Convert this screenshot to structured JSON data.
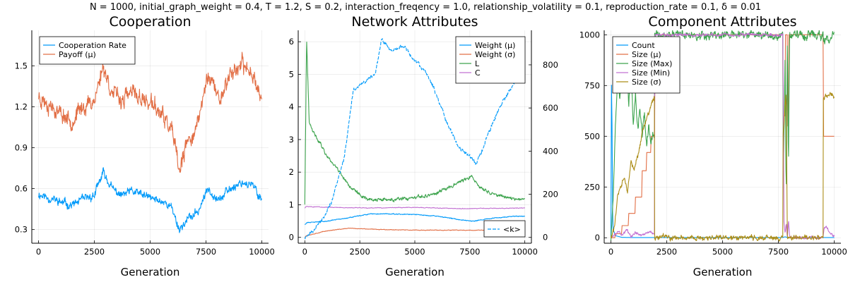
{
  "figure_title": "N = 1000, initial_graph_weight = 0.4, T = 1.2, S = 0.2, interaction_freqency = 1.0, relationship_volatility = 0.1, reproduction_rate = 0.1, δ = 0.01",
  "colors": {
    "c1": "#009AFA",
    "c2": "#E26F46",
    "c3": "#3EA44E",
    "c4": "#C271D2",
    "c5": "#AC8D18"
  },
  "chart_data": [
    {
      "type": "line",
      "title": "Cooperation",
      "xlabel": "Generation",
      "xlim": [
        -300,
        10300
      ],
      "ylim": [
        0.2,
        1.76
      ],
      "xticks": [
        0,
        2500,
        5000,
        7500,
        10000
      ],
      "xtick_labels": [
        "0",
        "2500",
        "5000",
        "7500",
        "10000"
      ],
      "yticks": [
        0.3,
        0.6,
        0.9,
        1.2,
        1.5
      ],
      "ytick_labels": [
        "0.3",
        "0.6",
        "0.9",
        "1.2",
        "1.5"
      ],
      "grid": true,
      "legend_position": "top-left",
      "series": [
        {
          "name": "Cooperation Rate",
          "color": "#009AFA",
          "x": [
            0,
            500,
            1000,
            1500,
            2000,
            2500,
            2900,
            3300,
            3700,
            4200,
            4700,
            5200,
            5700,
            6000,
            6300,
            6700,
            7100,
            7600,
            8100,
            8600,
            9100,
            9600,
            10000
          ],
          "values": [
            0.56,
            0.53,
            0.5,
            0.48,
            0.52,
            0.55,
            0.72,
            0.6,
            0.55,
            0.58,
            0.55,
            0.52,
            0.5,
            0.45,
            0.3,
            0.38,
            0.42,
            0.6,
            0.52,
            0.6,
            0.65,
            0.62,
            0.52
          ],
          "noise": 0.035,
          "seed": 11
        },
        {
          "name": "Payoff (μ)",
          "color": "#E26F46",
          "x": [
            0,
            500,
            1000,
            1500,
            2000,
            2500,
            2900,
            3300,
            3700,
            4200,
            4700,
            5200,
            5700,
            6000,
            6300,
            6700,
            7100,
            7600,
            8100,
            8600,
            9100,
            9600,
            10000
          ],
          "values": [
            1.28,
            1.22,
            1.15,
            1.1,
            1.2,
            1.25,
            1.5,
            1.3,
            1.25,
            1.3,
            1.25,
            1.2,
            1.1,
            1.0,
            0.72,
            0.95,
            1.05,
            1.45,
            1.25,
            1.45,
            1.5,
            1.45,
            1.25
          ],
          "noise": 0.07,
          "seed": 23
        }
      ]
    },
    {
      "type": "line",
      "title": "Network Attributes",
      "xlabel": "Generation",
      "xlim": [
        -300,
        10300
      ],
      "ylim": [
        -0.18,
        6.35
      ],
      "y2lim": [
        -27,
        960
      ],
      "xticks": [
        0,
        2500,
        5000,
        7500,
        10000
      ],
      "xtick_labels": [
        "0",
        "2500",
        "5000",
        "7500",
        "10000"
      ],
      "yticks": [
        0,
        1,
        2,
        3,
        4,
        5,
        6
      ],
      "ytick_labels": [
        "0",
        "1",
        "2",
        "3",
        "4",
        "5",
        "6"
      ],
      "y2ticks": [
        0,
        200,
        400,
        600,
        800
      ],
      "y2tick_labels": [
        "0",
        "200",
        "400",
        "600",
        "800"
      ],
      "grid": true,
      "legend_position": "top-right",
      "legend2_position": "bottom-right",
      "series": [
        {
          "name": "Weight (μ)",
          "color": "#009AFA",
          "x": [
            0,
            100,
            1000,
            2000,
            3000,
            4000,
            5000,
            6000,
            7000,
            7600,
            8500,
            9500,
            10000
          ],
          "values": [
            0.4,
            0.45,
            0.5,
            0.6,
            0.72,
            0.72,
            0.7,
            0.65,
            0.55,
            0.5,
            0.58,
            0.65,
            0.65
          ],
          "noise": 0.015,
          "seed": 31
        },
        {
          "name": "Weight (σ)",
          "color": "#E26F46",
          "x": [
            0,
            50,
            1000,
            2000,
            3000,
            5000,
            7000,
            8500,
            10000
          ],
          "values": [
            0.0,
            0.05,
            0.2,
            0.28,
            0.25,
            0.22,
            0.22,
            0.22,
            0.25
          ],
          "noise": 0.01,
          "seed": 37
        },
        {
          "name": "L",
          "color": "#3EA44E",
          "x": [
            0,
            80,
            200,
            400,
            700,
            1000,
            1500,
            2000,
            2500,
            3000,
            4000,
            5000,
            6000,
            7000,
            7600,
            8000,
            8500,
            9000,
            9500,
            10000
          ],
          "values": [
            1.0,
            6.1,
            3.5,
            3.2,
            2.9,
            2.5,
            2.1,
            1.6,
            1.3,
            1.15,
            1.15,
            1.2,
            1.35,
            1.7,
            1.85,
            1.5,
            1.35,
            1.25,
            1.2,
            1.15
          ],
          "noise": 0.06,
          "seed": 41
        },
        {
          "name": "C",
          "color": "#C271D2",
          "x": [
            0,
            50,
            1000,
            3000,
            5000,
            7000,
            10000
          ],
          "values": [
            0.9,
            0.95,
            0.92,
            0.9,
            0.92,
            0.88,
            0.9
          ],
          "noise": 0.012,
          "seed": 43
        },
        {
          "name": "<k>",
          "color": "#009AFA",
          "axis": "right",
          "dashed": true,
          "x": [
            0,
            300,
            700,
            1200,
            1800,
            2200,
            2700,
            3200,
            3500,
            4000,
            4500,
            5000,
            5500,
            6000,
            6500,
            7000,
            7500,
            7800,
            8300,
            8800,
            9300,
            10000
          ],
          "values": [
            0,
            20,
            70,
            160,
            370,
            680,
            720,
            760,
            920,
            860,
            890,
            820,
            770,
            660,
            520,
            420,
            380,
            340,
            470,
            590,
            680,
            800
          ],
          "noise": 10,
          "seed": 47
        }
      ]
    },
    {
      "type": "line",
      "title": "Component Attributes",
      "xlabel": "Generation",
      "xlim": [
        -300,
        10300
      ],
      "ylim": [
        -27,
        1022
      ],
      "xticks": [
        0,
        2500,
        5000,
        7500,
        10000
      ],
      "xtick_labels": [
        "0",
        "2500",
        "5000",
        "7500",
        "10000"
      ],
      "yticks": [
        0,
        250,
        500,
        750,
        1000
      ],
      "ytick_labels": [
        "0",
        "250",
        "500",
        "750",
        "1000"
      ],
      "grid": true,
      "legend_position": "top-left",
      "series": [
        {
          "name": "Count",
          "color": "#009AFA",
          "x": [
            0,
            30,
            80,
            200,
            500,
            1000,
            1500,
            2000,
            5000,
            7700,
            7800,
            7900,
            8200,
            8300,
            10000
          ],
          "values": [
            0,
            900,
            50,
            10,
            2,
            1,
            1,
            1,
            1,
            1,
            5,
            1,
            1,
            1,
            1
          ],
          "noise": 0,
          "seed": 1
        },
        {
          "name": "Size (μ)",
          "color": "#E26F46",
          "step": true,
          "x": [
            0,
            200,
            500,
            800,
            1100,
            1400,
            1600,
            1800,
            1950,
            1960,
            7700,
            7710,
            7750,
            7800,
            7900,
            7950,
            8200,
            8210,
            9500,
            9510,
            10000
          ],
          "values": [
            0,
            20,
            60,
            120,
            200,
            330,
            420,
            500,
            500,
            1000,
            1000,
            500,
            600,
            1000,
            550,
            1000,
            1000,
            1000,
            1000,
            500,
            500
          ],
          "noise": 0,
          "seed": 2
        },
        {
          "name": "Size (Max)",
          "color": "#3EA44E",
          "x": [
            0,
            100,
            200,
            300,
            400,
            500,
            600,
            700,
            800,
            900,
            1000,
            1100,
            1200,
            1300,
            1400,
            1500,
            1600,
            1700,
            1800,
            1900,
            1950,
            1960,
            7700,
            7720,
            7800,
            7850,
            7900,
            7950,
            8000,
            8200,
            8210,
            9500,
            9510,
            9600,
            9800,
            10000
          ],
          "values": [
            0,
            200,
            550,
            800,
            700,
            850,
            750,
            900,
            650,
            850,
            550,
            700,
            520,
            650,
            500,
            600,
            450,
            550,
            450,
            520,
            480,
            1000,
            1000,
            300,
            900,
            200,
            1000,
            350,
            1000,
            1000,
            1000,
            1000,
            950,
            960,
            980,
            1000
          ],
          "noise": 25,
          "seed": 53
        },
        {
          "name": "Size (Min)",
          "color": "#C271D2",
          "x": [
            0,
            100,
            300,
            500,
            700,
            900,
            1100,
            1300,
            1500,
            1700,
            1950,
            1960,
            7700,
            7750,
            7800,
            7850,
            7900,
            7950,
            8000,
            8050,
            9500,
            9550,
            9650,
            9800,
            10000
          ],
          "values": [
            0,
            10,
            30,
            15,
            40,
            10,
            25,
            15,
            20,
            30,
            20,
            1000,
            1000,
            80,
            20,
            60,
            5,
            90,
            10,
            0,
            0,
            50,
            60,
            20,
            10
          ],
          "noise": 8,
          "seed": 59
        },
        {
          "name": "Size (σ)",
          "color": "#AC8D18",
          "x": [
            0,
            150,
            300,
            450,
            600,
            750,
            900,
            1050,
            1200,
            1350,
            1500,
            1650,
            1800,
            1950,
            1960,
            7700,
            7710,
            7760,
            7850,
            7900,
            7950,
            8200,
            8210,
            9500,
            9510,
            9600,
            10000
          ],
          "values": [
            0,
            50,
            200,
            250,
            300,
            220,
            380,
            330,
            400,
            480,
            560,
            600,
            650,
            700,
            0,
            0,
            500,
            600,
            700,
            0,
            0,
            0,
            0,
            0,
            680,
            700,
            710
          ],
          "noise": 15,
          "seed": 61
        }
      ]
    }
  ]
}
